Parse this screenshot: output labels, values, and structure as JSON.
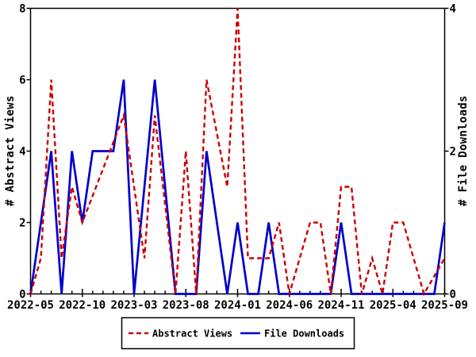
{
  "chart": {
    "background": "#ffffff",
    "frame_color": "#000000",
    "left_axis": {
      "title": "# Abstract Views",
      "ticks": [
        0,
        2,
        4,
        6,
        8
      ],
      "range": [
        0,
        8
      ]
    },
    "right_axis": {
      "title": "# File Downloads",
      "ticks": [
        0,
        2,
        4
      ],
      "range": [
        0,
        4
      ]
    },
    "x_axis": {
      "start_month": "2022-05",
      "end_month": "2025-09",
      "total_months": 41,
      "months_between_labels": 5,
      "tick_labels": [
        "2022-05",
        "2022-10",
        "2023-03",
        "2023-08",
        "2024-01",
        "2024-06",
        "2024-11",
        "2025-04",
        "2025-09"
      ]
    },
    "legend": {
      "items": [
        {
          "label": "Abstract Views",
          "color": "#cc0000",
          "style": "dashed"
        },
        {
          "label": "File Downloads",
          "color": "#0000cc",
          "style": "solid"
        }
      ]
    }
  },
  "chart_data": {
    "type": "line",
    "title": "",
    "xlabel": "",
    "ylabel_left": "# Abstract Views",
    "ylabel_right": "# File Downloads",
    "x_range_months": [
      "2022-05",
      "2025-09"
    ],
    "ylim_left": [
      0,
      8
    ],
    "ylim_right": [
      0,
      4
    ],
    "grid": false,
    "legend_position": "bottom-center",
    "series": [
      {
        "name": "File Downloads",
        "axis": "right",
        "color": "#0000cc",
        "dash": false,
        "points": [
          [
            "2022-05",
            0
          ],
          [
            "2022-07",
            2
          ],
          [
            "2022-08",
            0
          ],
          [
            "2022-09",
            2
          ],
          [
            "2022-10",
            1
          ],
          [
            "2022-11",
            2
          ],
          [
            "2023-01",
            2
          ],
          [
            "2023-02",
            3
          ],
          [
            "2023-03",
            0
          ],
          [
            "2023-05",
            3
          ],
          [
            "2023-07",
            0
          ],
          [
            "2023-09",
            0
          ],
          [
            "2023-10",
            2
          ],
          [
            "2023-12",
            0
          ],
          [
            "2024-01",
            1
          ],
          [
            "2024-02",
            0
          ],
          [
            "2024-03",
            0
          ],
          [
            "2024-04",
            1
          ],
          [
            "2024-05",
            0
          ],
          [
            "2024-10",
            0
          ],
          [
            "2024-11",
            1
          ],
          [
            "2024-12",
            0
          ],
          [
            "2025-08",
            0
          ],
          [
            "2025-09",
            1
          ]
        ]
      },
      {
        "name": "Abstract Views",
        "axis": "left",
        "color": "#cc0000",
        "dash": true,
        "points": [
          [
            "2022-05",
            0
          ],
          [
            "2022-06",
            1
          ],
          [
            "2022-07",
            6
          ],
          [
            "2022-08",
            1
          ],
          [
            "2022-09",
            3
          ],
          [
            "2022-10",
            2
          ],
          [
            "2023-02",
            5
          ],
          [
            "2023-04",
            1
          ],
          [
            "2023-05",
            5
          ],
          [
            "2023-07",
            0
          ],
          [
            "2023-08",
            4
          ],
          [
            "2023-09",
            0
          ],
          [
            "2023-10",
            6
          ],
          [
            "2023-12",
            3
          ],
          [
            "2024-01",
            8
          ],
          [
            "2024-02",
            1
          ],
          [
            "2024-04",
            1
          ],
          [
            "2024-05",
            2
          ],
          [
            "2024-06",
            0
          ],
          [
            "2024-08",
            2
          ],
          [
            "2024-09",
            2
          ],
          [
            "2024-10",
            0
          ],
          [
            "2024-11",
            3
          ],
          [
            "2024-12",
            3
          ],
          [
            "2025-01",
            0
          ],
          [
            "2025-02",
            1
          ],
          [
            "2025-03",
            0
          ],
          [
            "2025-04",
            2
          ],
          [
            "2025-05",
            2
          ],
          [
            "2025-07",
            0
          ],
          [
            "2025-09",
            1
          ]
        ]
      }
    ]
  }
}
